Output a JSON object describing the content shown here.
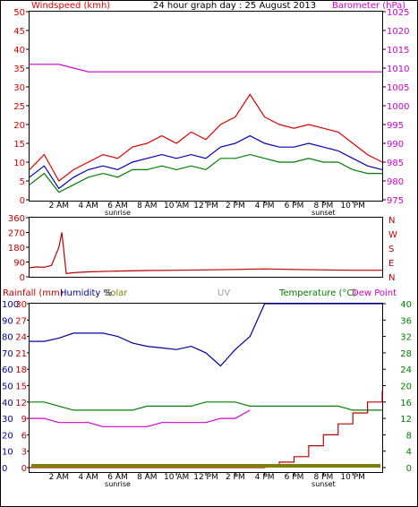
{
  "title": "24 hour graph day : 25 August 2013",
  "colors": {
    "wind": "#e00000",
    "gust": "#e00000",
    "avg": "#0000c0",
    "windlow": "#008000",
    "baro": "#d000d0",
    "humidity": "#0000a0",
    "temp": "#008000",
    "dew": "#d000d0",
    "rain": "#c00000",
    "solar": "#808000",
    "uv": "#a0a0a0",
    "dir": "#c00000"
  },
  "time_labels": [
    "2 AM",
    "4 AM",
    "6 AM",
    "8 AM",
    "10 AM",
    "12 PM",
    "2 PM",
    "4 PM",
    "6 PM",
    "8 PM",
    "10 PM"
  ],
  "sunrise_label": "sunrise",
  "sunset_label": "sunset",
  "chart_data": [
    {
      "type": "line",
      "title": "24 hour graph day : 25 August 2013",
      "ylabel_left": "Windspeed (kmh)",
      "ylabel_right": "Barometer (hPa)",
      "ylim_left": [
        0,
        50
      ],
      "yticks_left": [
        "0",
        "5",
        "10",
        "15",
        "20",
        "25",
        "30",
        "35",
        "40",
        "45",
        "50"
      ],
      "ylim_right": [
        975,
        1025
      ],
      "yticks_right": [
        "975",
        "980",
        "985",
        "990",
        "995",
        "1000",
        "1005",
        "1010",
        "1015",
        "1020",
        "1025"
      ],
      "x_hours": [
        0,
        1,
        2,
        3,
        4,
        5,
        6,
        7,
        8,
        9,
        10,
        11,
        12,
        13,
        14,
        15,
        16,
        17,
        18,
        19,
        20,
        21,
        22,
        23,
        24
      ],
      "series": [
        {
          "name": "gust",
          "values": [
            8,
            12,
            5,
            8,
            10,
            12,
            11,
            14,
            15,
            17,
            15,
            18,
            16,
            20,
            22,
            28,
            22,
            20,
            19,
            20,
            19,
            18,
            15,
            12,
            10
          ]
        },
        {
          "name": "average",
          "values": [
            6,
            9,
            3,
            6,
            8,
            9,
            8,
            10,
            11,
            12,
            11,
            12,
            11,
            14,
            15,
            17,
            15,
            14,
            14,
            15,
            14,
            13,
            11,
            9,
            8
          ]
        },
        {
          "name": "low",
          "values": [
            4,
            7,
            2,
            4,
            6,
            7,
            6,
            8,
            8,
            9,
            8,
            9,
            8,
            11,
            11,
            12,
            11,
            10,
            10,
            11,
            10,
            10,
            8,
            7,
            7
          ]
        },
        {
          "name": "barometer",
          "values": [
            1011,
            1011,
            1011,
            1010,
            1009,
            1009,
            1009,
            1009,
            1009,
            1009,
            1009,
            1009,
            1009,
            1009,
            1009,
            1009,
            1009,
            1009,
            1009,
            1009,
            1009,
            1009,
            1009,
            1009,
            1009
          ]
        }
      ]
    },
    {
      "type": "line",
      "ylabel_right": "Wind direction",
      "compass_labels": [
        "N",
        "W",
        "S",
        "E",
        "N"
      ],
      "ylim": [
        0,
        360
      ],
      "yticks": [
        "0",
        "90",
        "180",
        "270",
        "360"
      ],
      "x_hours": [
        0,
        0.5,
        1,
        1.5,
        2,
        2.2,
        2.5,
        3,
        4,
        6,
        8,
        10,
        12,
        14,
        16,
        18,
        20,
        22,
        24
      ],
      "series": [
        {
          "name": "direction",
          "values": [
            55,
            60,
            58,
            70,
            180,
            270,
            20,
            25,
            30,
            35,
            38,
            40,
            42,
            45,
            48,
            45,
            42,
            40,
            40
          ]
        }
      ]
    },
    {
      "type": "line",
      "ylabel_left": "Rainfall (mm)",
      "ylabel_mid1": "Humidity %",
      "ylabel_mid2": "Solar",
      "ylabel_mid3": "UV",
      "ylabel_right": "Temperature (°C)",
      "ylabel_right2": "Dew Point",
      "yticks_humidity": [
        "0",
        "10",
        "20",
        "30",
        "40",
        "50",
        "60",
        "70",
        "80",
        "90",
        "100"
      ],
      "yticks_rain": [
        "0",
        "3",
        "6",
        "9",
        "12",
        "15",
        "18",
        "21",
        "24",
        "27",
        "30"
      ],
      "yticks_temp": [
        "0",
        "4",
        "8",
        "12",
        "16",
        "20",
        "24",
        "28",
        "32",
        "36",
        "40"
      ],
      "ylim_humidity": [
        0,
        100
      ],
      "ylim_temp": [
        0,
        40
      ],
      "x_hours": [
        0,
        1,
        2,
        3,
        4,
        5,
        6,
        7,
        8,
        9,
        10,
        11,
        12,
        13,
        14,
        15,
        16,
        17,
        18,
        19,
        20,
        21,
        22,
        23,
        24
      ],
      "series": [
        {
          "name": "humidity",
          "values": [
            77,
            77,
            79,
            82,
            82,
            82,
            80,
            76,
            74,
            73,
            72,
            74,
            70,
            62,
            72,
            80,
            100,
            100,
            100,
            100,
            100,
            100,
            100,
            100,
            100
          ]
        },
        {
          "name": "temperature",
          "values": [
            16,
            16,
            15,
            14,
            14,
            14,
            14,
            14,
            15,
            15,
            15,
            15,
            16,
            16,
            16,
            15,
            15,
            15,
            15,
            15,
            15,
            15,
            14,
            14,
            14
          ]
        },
        {
          "name": "dew_point",
          "values": [
            12,
            12,
            11,
            11,
            11,
            10,
            10,
            10,
            10,
            11,
            11,
            11,
            11,
            12,
            12,
            14,
            null,
            null,
            null,
            null,
            null,
            null,
            null,
            null,
            null
          ]
        },
        {
          "name": "rainfall",
          "values": [
            0,
            0,
            0,
            0,
            0,
            0,
            0,
            0,
            0,
            0,
            0,
            0,
            0,
            0,
            0,
            0,
            0.5,
            1,
            2,
            4,
            6,
            8,
            10,
            12,
            14
          ]
        },
        {
          "name": "solar",
          "values": [
            0,
            0,
            0,
            0,
            0,
            0,
            0,
            0,
            0,
            0,
            0,
            0,
            0,
            0,
            0,
            0,
            0,
            0,
            0,
            0,
            0,
            0,
            0,
            0,
            0
          ]
        }
      ]
    }
  ]
}
